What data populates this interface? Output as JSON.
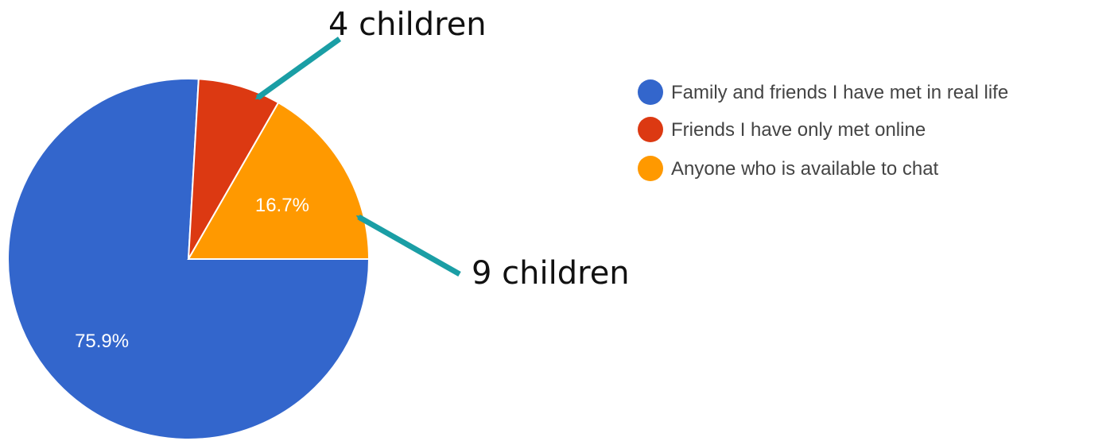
{
  "chart_data": {
    "type": "pie",
    "title": "",
    "slices": [
      {
        "label": "Family and friends I have met in real life",
        "value": 75.9,
        "color": "#3366cc",
        "data_label": "75.9%"
      },
      {
        "label": "Friends I have only met online",
        "value": 7.4,
        "color": "#dc3912",
        "data_label": ""
      },
      {
        "label": "Anyone who is available to chat",
        "value": 16.7,
        "color": "#ff9900",
        "data_label": "16.7%"
      }
    ],
    "legend_position": "right",
    "annotations": [
      {
        "text": "4 children",
        "target": "Friends I have only met online",
        "arrow_color": "#1a9ea5"
      },
      {
        "text": "9 children",
        "target": "Anyone who is available to chat",
        "arrow_color": "#1a9ea5"
      }
    ]
  }
}
